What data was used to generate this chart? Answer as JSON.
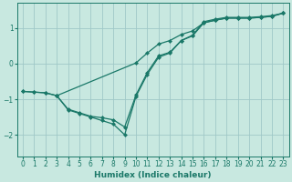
{
  "xlabel": "Humidex (Indice chaleur)",
  "bg_color": "#c8e8e0",
  "grid_color": "#a0c8c8",
  "line_color": "#1a7868",
  "xlim": [
    -0.5,
    23.5
  ],
  "ylim": [
    -2.6,
    1.7
  ],
  "xticks": [
    0,
    1,
    2,
    3,
    4,
    5,
    6,
    7,
    8,
    9,
    10,
    11,
    12,
    13,
    14,
    15,
    16,
    17,
    18,
    19,
    20,
    21,
    22,
    23
  ],
  "yticks": [
    -2,
    -1,
    0,
    1
  ],
  "line1_x": [
    0,
    1,
    2,
    3,
    10,
    11,
    12,
    13,
    14,
    15,
    16,
    17,
    18,
    19,
    20,
    21,
    22,
    23
  ],
  "line1_y": [
    -0.78,
    -0.8,
    -0.82,
    -0.9,
    0.02,
    0.3,
    0.55,
    0.65,
    0.82,
    0.92,
    1.15,
    1.22,
    1.28,
    1.28,
    1.28,
    1.3,
    1.33,
    1.42
  ],
  "line2_x": [
    0,
    1,
    2,
    3,
    4,
    5,
    6,
    7,
    8,
    9,
    10,
    11,
    12,
    13,
    14,
    15,
    16,
    17,
    18,
    19,
    20,
    21,
    22,
    23
  ],
  "line2_y": [
    -0.78,
    -0.8,
    -0.82,
    -0.9,
    -1.28,
    -1.38,
    -1.48,
    -1.52,
    -1.58,
    -1.78,
    -0.88,
    -0.25,
    0.22,
    0.32,
    0.65,
    0.8,
    1.18,
    1.25,
    1.3,
    1.3,
    1.3,
    1.32,
    1.35,
    1.42
  ],
  "line3_x": [
    3,
    4,
    5,
    6,
    7,
    8,
    9,
    10,
    11,
    12,
    13,
    14,
    15,
    16,
    17,
    18,
    19,
    20,
    21,
    22,
    23
  ],
  "line3_y": [
    -0.9,
    -1.3,
    -1.4,
    -1.5,
    -1.6,
    -1.7,
    -2.0,
    -0.92,
    -0.3,
    0.18,
    0.3,
    0.65,
    0.78,
    1.15,
    1.22,
    1.28,
    1.28,
    1.28,
    1.3,
    1.33,
    1.42
  ],
  "marker_size": 2.5,
  "line_width": 0.9
}
